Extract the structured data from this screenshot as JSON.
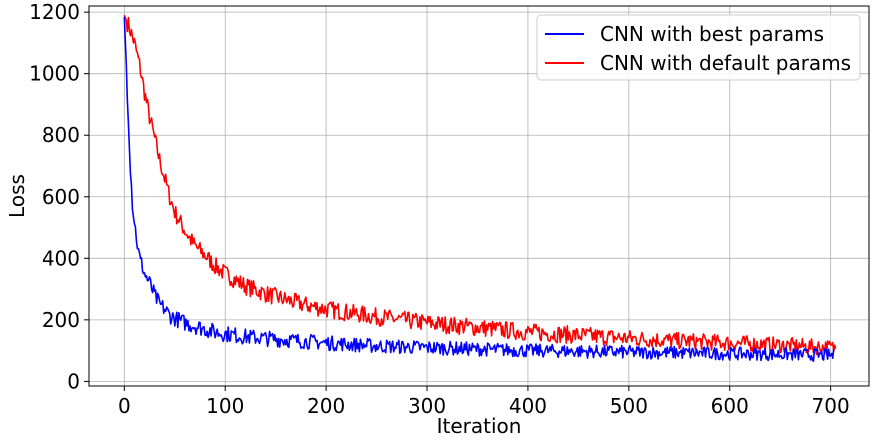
{
  "chart_data": {
    "type": "line",
    "xlabel": "Iteration",
    "ylabel": "Loss",
    "xlim": [
      -35,
      738
    ],
    "ylim": [
      -15,
      1220
    ],
    "xticks": [
      0,
      100,
      200,
      300,
      400,
      500,
      600,
      700
    ],
    "yticks": [
      0,
      200,
      400,
      600,
      800,
      1000,
      1200
    ],
    "grid": true,
    "legend_position": "top-right",
    "series": [
      {
        "name": "CNN with best params",
        "color": "#0000ff",
        "x": [
          0,
          2,
          4,
          6,
          8,
          10,
          12,
          14,
          16,
          18,
          20,
          25,
          30,
          35,
          40,
          45,
          50,
          60,
          70,
          80,
          90,
          100,
          120,
          140,
          160,
          180,
          200,
          250,
          300,
          350,
          400,
          450,
          500,
          550,
          600,
          650,
          700,
          703
        ],
        "y": [
          1185,
          1030,
          860,
          700,
          580,
          520,
          470,
          420,
          390,
          375,
          350,
          320,
          280,
          250,
          235,
          215,
          205,
          190,
          180,
          170,
          160,
          155,
          145,
          140,
          135,
          130,
          125,
          115,
          110,
          105,
          100,
          98,
          95,
          93,
          90,
          88,
          85,
          85
        ],
        "noise": 22
      },
      {
        "name": "CNN with default params",
        "color": "#ff0000",
        "x": [
          0,
          5,
          10,
          15,
          20,
          25,
          30,
          35,
          40,
          45,
          50,
          60,
          70,
          80,
          90,
          100,
          120,
          140,
          160,
          180,
          200,
          250,
          300,
          350,
          400,
          450,
          500,
          550,
          600,
          650,
          700,
          705
        ],
        "y": [
          1190,
          1150,
          1100,
          1030,
          940,
          860,
          790,
          720,
          660,
          600,
          550,
          490,
          440,
          410,
          375,
          350,
          310,
          285,
          265,
          248,
          235,
          210,
          190,
          175,
          160,
          150,
          140,
          132,
          125,
          118,
          110,
          108
        ],
        "noise": 24
      }
    ]
  }
}
